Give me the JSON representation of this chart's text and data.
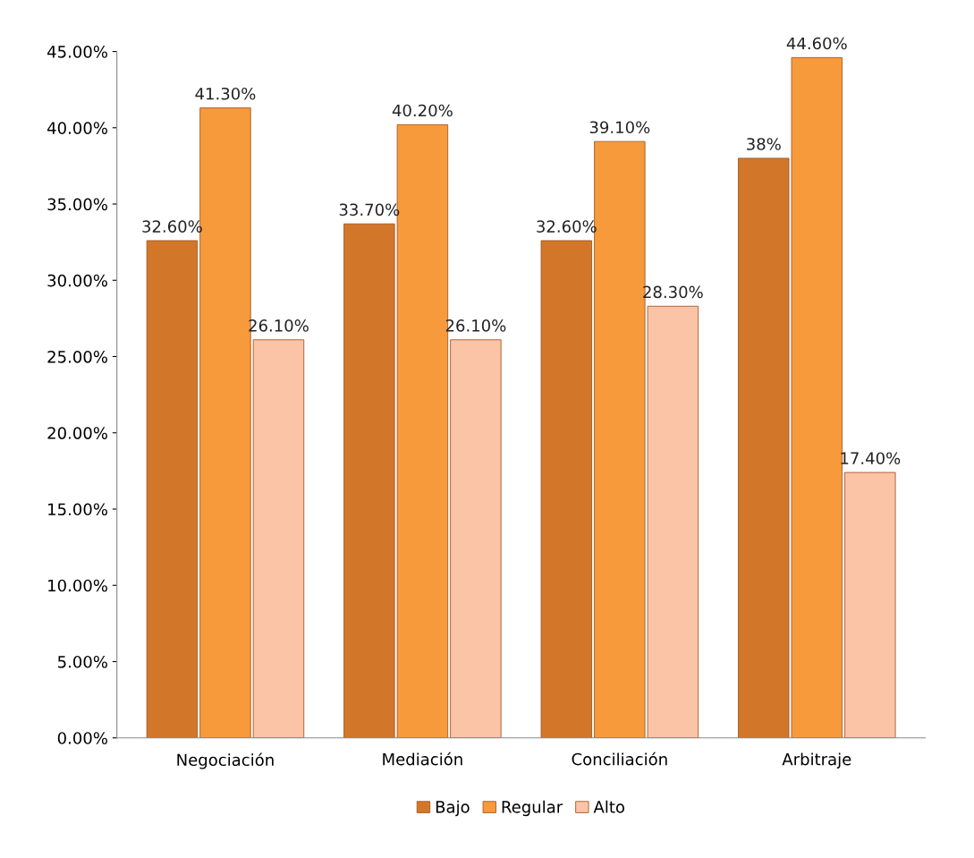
{
  "chart_data": {
    "type": "bar",
    "categories": [
      "Negociación",
      "Mediación",
      "Conciliación",
      "Arbitraje"
    ],
    "series": [
      {
        "name": "Bajo",
        "color": "#d2772a",
        "values": [
          32.6,
          33.7,
          32.6,
          38
        ],
        "value_labels": [
          "32.60%",
          "33.70%",
          "32.60%",
          "38%"
        ]
      },
      {
        "name": "Regular",
        "color": "#f79a3c",
        "values": [
          41.3,
          40.2,
          39.1,
          44.6
        ],
        "value_labels": [
          "41.30%",
          "40.20%",
          "39.10%",
          "44.60%"
        ]
      },
      {
        "name": "Alto",
        "color": "#fbc4a6",
        "values": [
          26.1,
          26.1,
          28.3,
          17.4
        ],
        "value_labels": [
          "26.10%",
          "26.10%",
          "28.30%",
          "17.40%"
        ]
      }
    ],
    "ylim": [
      0,
      45
    ],
    "yticks": [
      {
        "value": 0,
        "label": "0.00%"
      },
      {
        "value": 5,
        "label": "5.00%"
      },
      {
        "value": 10,
        "label": "10.00%"
      },
      {
        "value": 15,
        "label": "15.00%"
      },
      {
        "value": 20,
        "label": "20.00%"
      },
      {
        "value": 25,
        "label": "25.00%"
      },
      {
        "value": 30,
        "label": "30.00%"
      },
      {
        "value": 35,
        "label": "35.00%"
      },
      {
        "value": 40,
        "label": "40.00%"
      },
      {
        "value": 45,
        "label": "45.00%"
      }
    ],
    "grid": false,
    "legend": "bottom"
  }
}
